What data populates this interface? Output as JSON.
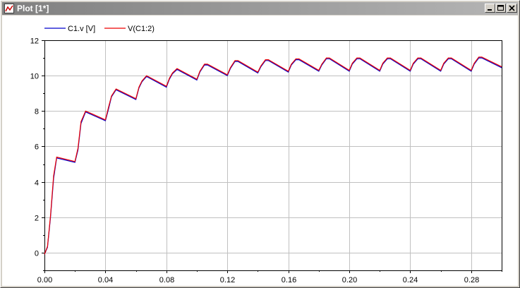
{
  "window": {
    "title": "Plot [1*]"
  },
  "icons": {
    "app": "plot-icon",
    "minimize": "minimize-icon",
    "maximize": "maximize-icon",
    "close": "close-icon"
  },
  "colors": {
    "series1": "#0000cc",
    "series2": "#ee0000",
    "grid": "#c0c0c0",
    "titlebar": "#808080"
  },
  "chart_data": {
    "type": "line",
    "title": "",
    "xlabel": "",
    "ylabel": "",
    "xlim": [
      0,
      0.3
    ],
    "ylim": [
      -1,
      12
    ],
    "grid": true,
    "legend_position": "top-left",
    "x_ticks": [
      0,
      0.04,
      0.08,
      0.12,
      0.16,
      0.2,
      0.24,
      0.28
    ],
    "x_tick_labels": [
      "0.00",
      "0.04",
      "0.08",
      "0.12",
      "0.16",
      "0.20",
      "0.24",
      "0.28"
    ],
    "y_ticks": [
      0,
      2,
      4,
      6,
      8,
      10,
      12
    ],
    "y_tick_labels": [
      "0",
      "2",
      "4",
      "6",
      "8",
      "10",
      "12"
    ],
    "series": [
      {
        "name": "C1.v [V]",
        "color": "#0000cc",
        "points": [
          [
            0,
            -0.1
          ],
          [
            0.002,
            0.3
          ],
          [
            0.004,
            2.0
          ],
          [
            0.006,
            4.2
          ],
          [
            0.008,
            5.35
          ],
          [
            0.02,
            5.1
          ],
          [
            0.022,
            5.8
          ],
          [
            0.024,
            7.3
          ],
          [
            0.027,
            7.95
          ],
          [
            0.04,
            7.45
          ],
          [
            0.042,
            8.1
          ],
          [
            0.044,
            8.8
          ],
          [
            0.047,
            9.2
          ],
          [
            0.06,
            8.65
          ],
          [
            0.062,
            9.3
          ],
          [
            0.064,
            9.65
          ],
          [
            0.067,
            9.95
          ],
          [
            0.08,
            9.35
          ],
          [
            0.082,
            9.8
          ],
          [
            0.084,
            10.1
          ],
          [
            0.087,
            10.35
          ],
          [
            0.1,
            9.75
          ],
          [
            0.102,
            10.2
          ],
          [
            0.105,
            10.6
          ],
          [
            0.107,
            10.6
          ],
          [
            0.12,
            10.0
          ],
          [
            0.122,
            10.4
          ],
          [
            0.125,
            10.8
          ],
          [
            0.127,
            10.8
          ],
          [
            0.14,
            10.15
          ],
          [
            0.142,
            10.5
          ],
          [
            0.145,
            10.85
          ],
          [
            0.147,
            10.85
          ],
          [
            0.16,
            10.2
          ],
          [
            0.162,
            10.6
          ],
          [
            0.165,
            10.9
          ],
          [
            0.167,
            10.9
          ],
          [
            0.18,
            10.25
          ],
          [
            0.182,
            10.6
          ],
          [
            0.185,
            10.95
          ],
          [
            0.187,
            10.95
          ],
          [
            0.2,
            10.25
          ],
          [
            0.202,
            10.65
          ],
          [
            0.205,
            10.95
          ],
          [
            0.207,
            10.95
          ],
          [
            0.22,
            10.25
          ],
          [
            0.222,
            10.65
          ],
          [
            0.225,
            10.95
          ],
          [
            0.227,
            10.95
          ],
          [
            0.24,
            10.25
          ],
          [
            0.242,
            10.65
          ],
          [
            0.245,
            10.95
          ],
          [
            0.247,
            10.95
          ],
          [
            0.26,
            10.25
          ],
          [
            0.262,
            10.65
          ],
          [
            0.265,
            10.95
          ],
          [
            0.267,
            10.95
          ],
          [
            0.28,
            10.25
          ],
          [
            0.282,
            10.65
          ],
          [
            0.285,
            11.0
          ],
          [
            0.287,
            11.0
          ],
          [
            0.3,
            10.45
          ]
        ]
      },
      {
        "name": "V(C1:2)",
        "color": "#ee0000",
        "points": [
          [
            0,
            -0.1
          ],
          [
            0.002,
            0.35
          ],
          [
            0.004,
            2.1
          ],
          [
            0.006,
            4.35
          ],
          [
            0.008,
            5.4
          ],
          [
            0.02,
            5.15
          ],
          [
            0.022,
            5.9
          ],
          [
            0.024,
            7.4
          ],
          [
            0.027,
            8.0
          ],
          [
            0.04,
            7.5
          ],
          [
            0.042,
            8.2
          ],
          [
            0.044,
            8.85
          ],
          [
            0.047,
            9.25
          ],
          [
            0.06,
            8.7
          ],
          [
            0.062,
            9.35
          ],
          [
            0.064,
            9.7
          ],
          [
            0.067,
            10.0
          ],
          [
            0.08,
            9.4
          ],
          [
            0.082,
            9.85
          ],
          [
            0.084,
            10.15
          ],
          [
            0.087,
            10.4
          ],
          [
            0.1,
            9.8
          ],
          [
            0.102,
            10.25
          ],
          [
            0.105,
            10.65
          ],
          [
            0.107,
            10.65
          ],
          [
            0.12,
            10.05
          ],
          [
            0.122,
            10.45
          ],
          [
            0.125,
            10.85
          ],
          [
            0.127,
            10.85
          ],
          [
            0.14,
            10.2
          ],
          [
            0.142,
            10.55
          ],
          [
            0.145,
            10.9
          ],
          [
            0.147,
            10.9
          ],
          [
            0.16,
            10.25
          ],
          [
            0.162,
            10.65
          ],
          [
            0.165,
            10.95
          ],
          [
            0.167,
            10.95
          ],
          [
            0.18,
            10.3
          ],
          [
            0.182,
            10.65
          ],
          [
            0.185,
            11.0
          ],
          [
            0.187,
            11.0
          ],
          [
            0.2,
            10.3
          ],
          [
            0.202,
            10.7
          ],
          [
            0.205,
            11.0
          ],
          [
            0.207,
            11.0
          ],
          [
            0.22,
            10.3
          ],
          [
            0.222,
            10.7
          ],
          [
            0.225,
            11.0
          ],
          [
            0.227,
            11.0
          ],
          [
            0.24,
            10.3
          ],
          [
            0.242,
            10.7
          ],
          [
            0.245,
            11.0
          ],
          [
            0.247,
            11.0
          ],
          [
            0.26,
            10.3
          ],
          [
            0.262,
            10.7
          ],
          [
            0.265,
            11.0
          ],
          [
            0.267,
            11.0
          ],
          [
            0.28,
            10.3
          ],
          [
            0.282,
            10.7
          ],
          [
            0.285,
            11.05
          ],
          [
            0.287,
            11.05
          ],
          [
            0.3,
            10.5
          ]
        ]
      }
    ]
  }
}
